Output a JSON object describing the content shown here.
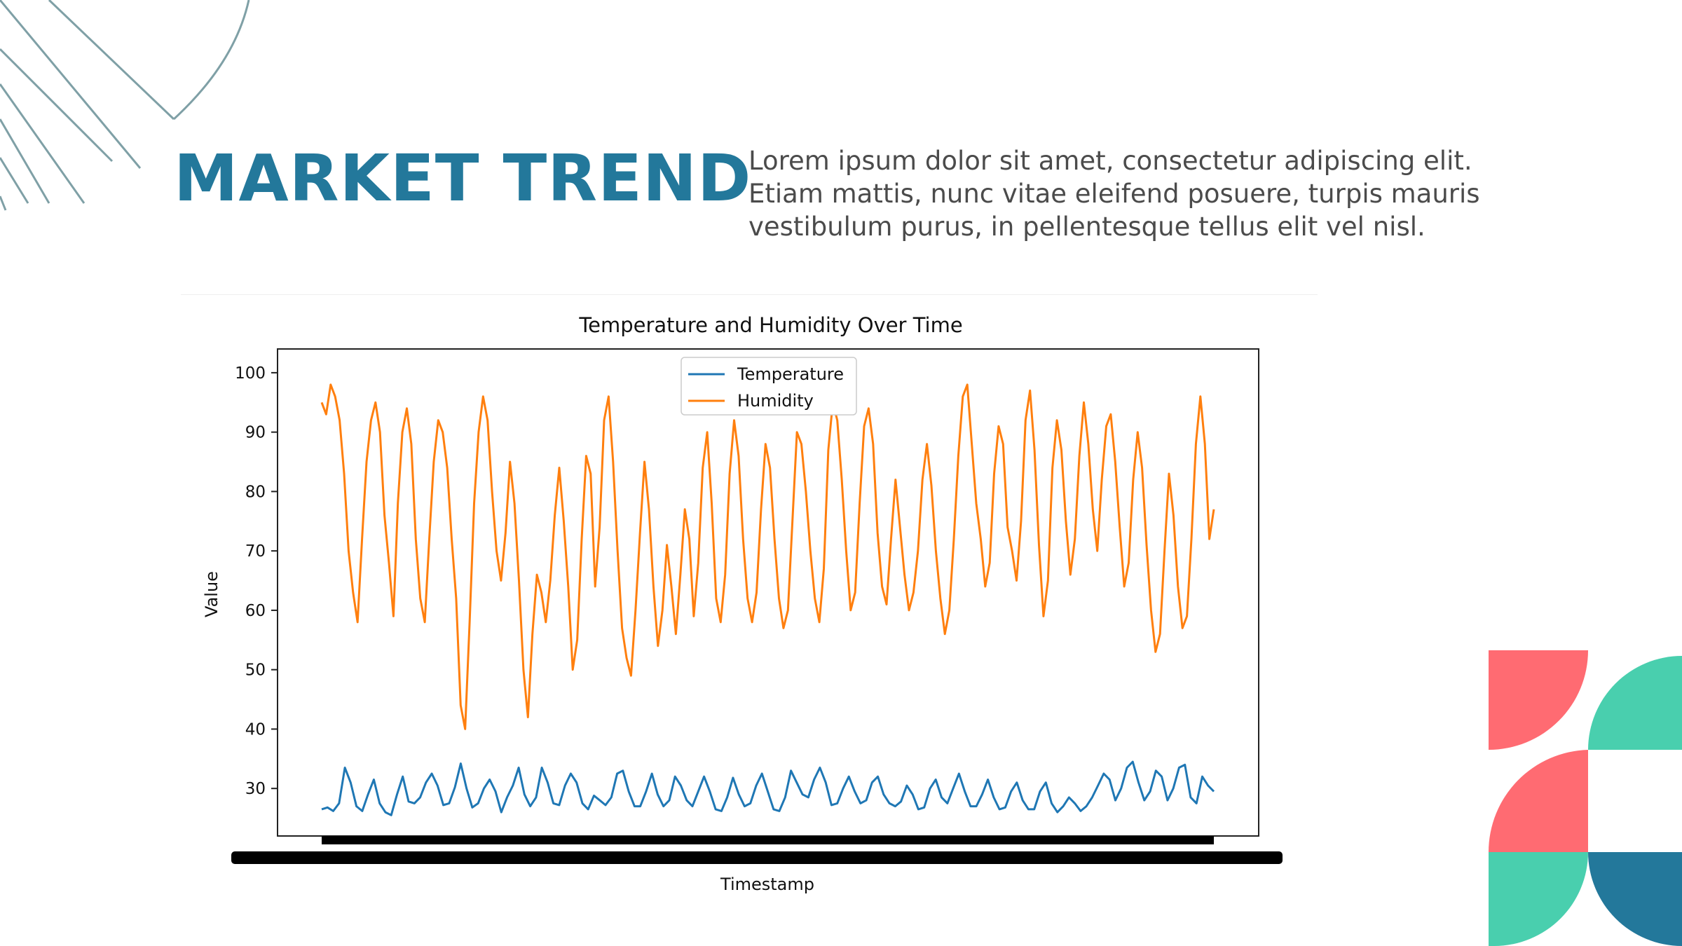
{
  "title": "MARKET TREND",
  "intro": "Lorem ipsum dolor sit amet, consectetur adipiscing elit. Etiam mattis, nunc vitae eleifend posuere, turpis mauris vestibulum purus, in pellentesque tellus elit vel nisl.",
  "colors": {
    "title": "#23789b",
    "decor_line": "#7fa0a6",
    "shape_red": "#ff6b72",
    "shape_green": "#49cfae",
    "shape_blue": "#23789b"
  },
  "chart_data": {
    "type": "line",
    "title": "Temperature and Humidity Over Time",
    "xlabel": "Timestamp",
    "ylabel": "Value",
    "ylim": [
      22,
      104
    ],
    "yticks": [
      30,
      40,
      50,
      60,
      70,
      80,
      90,
      100
    ],
    "legend": "top-center",
    "grid": false,
    "x_ticklabels_illegible": true,
    "series": [
      {
        "name": "Temperature",
        "color": "#1f77b4",
        "values": [
          26.5,
          26.8,
          26.2,
          27.5,
          33.5,
          31.0,
          27.0,
          26.2,
          29.0,
          31.5,
          27.5,
          26.0,
          25.5,
          29.0,
          32.0,
          27.8,
          27.5,
          28.5,
          31.0,
          32.5,
          30.5,
          27.2,
          27.5,
          30.2,
          34.2,
          30.0,
          26.8,
          27.5,
          30.0,
          31.5,
          29.5,
          26.0,
          28.5,
          30.5,
          33.5,
          29.0,
          27.0,
          28.5,
          33.5,
          31.0,
          27.5,
          27.2,
          30.5,
          32.5,
          31.0,
          27.5,
          26.5,
          28.8,
          28.0,
          27.2,
          28.5,
          32.5,
          33.0,
          29.5,
          27.0,
          27.0,
          29.5,
          32.5,
          29.0,
          27.0,
          28.0,
          32.0,
          30.5,
          28.0,
          27.0,
          29.5,
          32.0,
          29.5,
          26.5,
          26.2,
          28.5,
          31.8,
          29.0,
          27.0,
          27.5,
          30.5,
          32.5,
          29.5,
          26.5,
          26.2,
          28.5,
          33.0,
          31.0,
          29.0,
          28.5,
          31.5,
          33.5,
          31.0,
          27.2,
          27.5,
          30.0,
          32.0,
          29.5,
          27.5,
          28.0,
          31.0,
          32.0,
          29.0,
          27.5,
          27.0,
          27.8,
          30.5,
          29.0,
          26.5,
          26.8,
          30.0,
          31.5,
          28.5,
          27.5,
          30.0,
          32.5,
          29.5,
          27.0,
          27.0,
          29.0,
          31.5,
          28.5,
          26.5,
          26.8,
          29.5,
          31.0,
          28.0,
          26.5,
          26.5,
          29.5,
          31.0,
          27.5,
          26.0,
          27.0,
          28.5,
          27.5,
          26.2,
          27.0,
          28.5,
          30.5,
          32.5,
          31.5,
          28.0,
          30.0,
          33.5,
          34.5,
          31.0,
          28.0,
          29.5,
          33.0,
          32.0,
          28.0,
          30.0,
          33.5,
          34.0,
          28.5,
          27.5,
          32.0,
          30.5,
          29.5
        ]
      },
      {
        "name": "Humidity",
        "color": "#ff7f0e",
        "values": [
          95,
          93,
          98,
          96,
          92,
          83,
          70,
          63,
          58,
          72,
          85,
          92,
          95,
          90,
          76,
          68,
          59,
          78,
          90,
          94,
          88,
          72,
          62,
          58,
          72,
          85,
          92,
          90,
          84,
          72,
          62,
          44,
          40,
          58,
          78,
          90,
          96,
          92,
          80,
          70,
          65,
          73,
          85,
          78,
          65,
          50,
          42,
          56,
          66,
          63,
          58,
          65,
          76,
          84,
          75,
          64,
          50,
          55,
          72,
          86,
          83,
          64,
          74,
          92,
          96,
          85,
          70,
          57,
          52,
          49,
          60,
          73,
          85,
          77,
          64,
          54,
          60,
          71,
          64,
          56,
          66,
          77,
          72,
          59,
          68,
          84,
          90,
          78,
          62,
          58,
          66,
          83,
          92,
          86,
          72,
          62,
          58,
          63,
          77,
          88,
          84,
          72,
          62,
          57,
          60,
          75,
          90,
          88,
          80,
          70,
          62,
          58,
          67,
          87,
          95,
          92,
          82,
          70,
          60,
          63,
          78,
          91,
          94,
          88,
          73,
          64,
          61,
          72,
          82,
          74,
          66,
          60,
          63,
          70,
          82,
          88,
          81,
          70,
          62,
          56,
          60,
          72,
          86,
          96,
          98,
          88,
          78,
          72,
          64,
          68,
          83,
          91,
          88,
          74,
          70,
          65,
          75,
          92,
          97,
          87,
          71,
          59,
          65,
          84,
          92,
          87,
          75,
          66,
          72,
          86,
          95,
          88,
          77,
          70,
          82,
          91,
          93,
          85,
          74,
          64,
          68,
          82,
          90,
          84,
          71,
          60,
          53,
          56,
          70,
          83,
          76,
          64,
          57,
          59,
          72,
          88,
          96,
          88,
          72,
          77
        ]
      }
    ]
  }
}
